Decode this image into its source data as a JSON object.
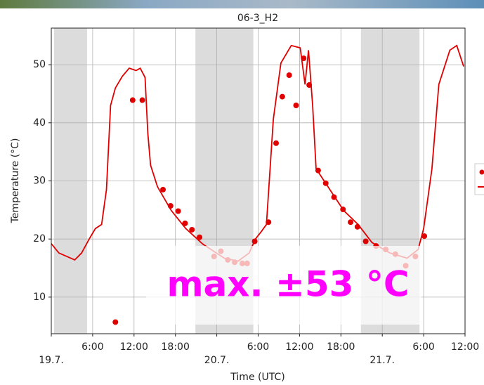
{
  "chart_data": {
    "type": "line",
    "title": "06-3_H2",
    "x_label": "Time (UTC)",
    "y_label": "Temperature (°C)",
    "annotation": "max. ±53 °C",
    "xlim": [
      0,
      60
    ],
    "ylim": [
      3.7,
      56.3
    ],
    "yticks": [
      10,
      20,
      30,
      40,
      50
    ],
    "xticks": [
      {
        "value": 6,
        "label": "6:00"
      },
      {
        "value": 12,
        "label": "12:00"
      },
      {
        "value": 18,
        "label": "18:00"
      },
      {
        "value": 30,
        "label": "6:00"
      },
      {
        "value": 36,
        "label": "12:00"
      },
      {
        "value": 42,
        "label": "18:00"
      },
      {
        "value": 54,
        "label": "6:00"
      },
      {
        "value": 60,
        "label": "12:00"
      }
    ],
    "date_ticks": [
      {
        "value": 0,
        "label": "19.7."
      },
      {
        "value": 24,
        "label": "20.7."
      },
      {
        "value": 48,
        "label": "21.7."
      }
    ],
    "night_bands": [
      [
        0.4,
        5.2
      ],
      [
        20.9,
        29.3
      ],
      [
        44.9,
        53.4
      ]
    ],
    "grid": true,
    "series": [
      {
        "type": "scatter",
        "color": "#e00000",
        "x": [
          9.3,
          11.8,
          13.2,
          16.2,
          17.3,
          18.4,
          19.4,
          20.4,
          21.5,
          23.6,
          24.6,
          25.6,
          26.6,
          27.7,
          28.4,
          29.5,
          31.5,
          32.6,
          33.5,
          34.5,
          35.5,
          36.6,
          37.4,
          38.7,
          39.8,
          41.0,
          42.3,
          43.4,
          44.4,
          45.6,
          47.1,
          48.5,
          49.9,
          51.4,
          52.8,
          54.1
        ],
        "values": [
          5.7,
          43.9,
          43.9,
          28.5,
          25.7,
          24.8,
          22.7,
          21.6,
          20.3,
          17.0,
          17.9,
          16.4,
          16.0,
          15.8,
          15.8,
          19.6,
          22.9,
          36.5,
          44.5,
          48.2,
          43.0,
          51.1,
          46.5,
          31.8,
          29.6,
          27.2,
          25.1,
          22.9,
          22.1,
          19.6,
          18.8,
          18.2,
          17.4,
          15.4,
          17.0,
          20.5
        ]
      },
      {
        "type": "line",
        "color": "#e00000",
        "x": [
          0,
          1.1,
          3.4,
          4.4,
          5.5,
          6.4,
          7.3,
          8.0,
          8.6,
          9.3,
          10.3,
          11.3,
          12.3,
          12.9,
          13.6,
          14.0,
          14.4,
          15.4,
          17.4,
          19.5,
          22.0,
          25.1,
          27.1,
          28.7,
          29.6,
          30.4,
          31.2,
          32.2,
          33.3,
          34.8,
          36.1,
          36.8,
          37.3,
          37.9,
          38.4,
          40.4,
          42.4,
          44.5,
          46.5,
          49.1,
          51.6,
          53.2,
          54.0,
          55.2,
          56.2,
          57.8,
          58.8,
          59.8
        ],
        "values": [
          19.2,
          17.6,
          16.4,
          17.6,
          20.0,
          21.8,
          22.5,
          28.5,
          43.0,
          46.0,
          48.0,
          49.4,
          49.0,
          49.4,
          47.8,
          38.2,
          32.7,
          29.0,
          24.9,
          21.8,
          19.1,
          16.7,
          16.2,
          17.6,
          20.0,
          21.2,
          22.5,
          40.6,
          50.3,
          53.3,
          52.9,
          46.6,
          52.5,
          43.0,
          32.1,
          28.5,
          24.9,
          22.5,
          19.4,
          17.6,
          16.7,
          18.2,
          21.8,
          32.1,
          46.6,
          52.5,
          53.3,
          49.7
        ]
      }
    ]
  }
}
